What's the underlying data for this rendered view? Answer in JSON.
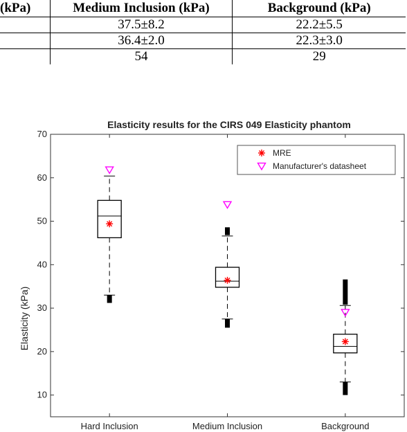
{
  "table": {
    "headers": [
      "(kPa)",
      "Medium Inclusion (kPa)",
      "Background (kPa)"
    ],
    "rows": [
      [
        "",
        "37.5±8.2",
        "22.2±5.5"
      ],
      [
        "",
        "36.4±2.0",
        "22.3±3.0"
      ],
      [
        "",
        "54",
        "29"
      ]
    ]
  },
  "colors": {
    "mre": "#ff0000",
    "manufacturer": "#ff00ff",
    "box": "#000000"
  },
  "chart_data": {
    "type": "box",
    "title": "Elasticity results for the CIRS 049 Elasticity phantom",
    "xlabel": "",
    "ylabel": "Elasticity (kPa)",
    "ylim": [
      5,
      70
    ],
    "yticks": [
      10,
      20,
      30,
      40,
      50,
      60,
      70
    ],
    "categories": [
      "Hard Inclusion",
      "Medium Inclusion",
      "Background"
    ],
    "legend_position": "top-right",
    "boxes": [
      {
        "category": "Hard Inclusion",
        "whisker_low": 33,
        "q1": 46.2,
        "median": 51.2,
        "q3": 54.8,
        "whisker_high": 60.4,
        "outliers": [
          {
            "from": 31.2,
            "to": 33
          }
        ]
      },
      {
        "category": "Medium Inclusion",
        "whisker_low": 27.5,
        "q1": 34.8,
        "median": 36.2,
        "q3": 39.4,
        "whisker_high": 46.6,
        "outliers": [
          {
            "from": 25.5,
            "to": 27.5
          },
          {
            "from": 46.8,
            "to": 48.6
          }
        ]
      },
      {
        "category": "Background",
        "whisker_low": 13,
        "q1": 19.7,
        "median": 21.2,
        "q3": 24.0,
        "whisker_high": 30.6,
        "outliers": [
          {
            "from": 10,
            "to": 13
          },
          {
            "from": 30.8,
            "to": 36.6
          }
        ]
      }
    ],
    "series": [
      {
        "name": "MRE",
        "marker": "asterisk",
        "values": [
          49.4,
          36.4,
          22.3
        ]
      },
      {
        "name": "Manufacturer's datasheet",
        "marker": "down-triangle",
        "values": [
          61.8,
          53.8,
          29
        ]
      }
    ]
  }
}
